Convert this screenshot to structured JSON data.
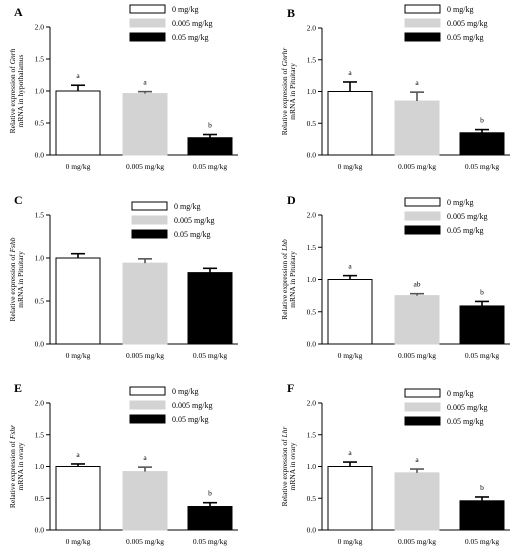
{
  "legend": [
    "0 mg/kg",
    "0.005 mg/kg",
    "0.05 mg/kg"
  ],
  "categories": [
    "0 mg/kg",
    "0.005 mg/kg",
    "0.05 mg/kg"
  ],
  "colors": {
    "fills": [
      "#ffffff",
      "#d3d3d3",
      "#000000"
    ],
    "strokes": [
      "#000000",
      "#d3d3d3",
      "#000000"
    ]
  },
  "chart_data": [
    {
      "type": "bar",
      "letter": "A",
      "gene": "Gnrh",
      "ylabel_prefix": "Relative expression of ",
      "ylabel_line2": "mRNA in hypothalamus",
      "ylim": [
        0,
        2
      ],
      "yticks": [
        "0.0",
        "0.5",
        "1.0",
        "1.5",
        "2.0"
      ],
      "categories": [
        "0 mg/kg",
        "0.005 mg/kg",
        "0.05 mg/kg"
      ],
      "values": [
        1.0,
        0.96,
        0.27
      ],
      "errors": [
        0.09,
        0.03,
        0.05
      ],
      "labels": [
        "a",
        "a",
        "b"
      ]
    },
    {
      "type": "bar",
      "letter": "B",
      "gene": "Gnrhr",
      "ylabel_prefix": "Relative expression of ",
      "ylabel_line2": "mRNA in Pituitary",
      "ylim": [
        0,
        2
      ],
      "yticks": [
        "0.0",
        "0.5",
        "1.0",
        "1.5",
        "2.0"
      ],
      "categories": [
        "0 mg/kg",
        "0.005 mg/kg",
        "0.05 mg/kg"
      ],
      "values": [
        1.0,
        0.85,
        0.35
      ],
      "errors": [
        0.15,
        0.14,
        0.05
      ],
      "labels": [
        "a",
        "a",
        "b"
      ]
    },
    {
      "type": "bar",
      "letter": "C",
      "gene": "Fshb",
      "ylabel_prefix": "Relative expression of ",
      "ylabel_line2": "mRNA in Pituitary",
      "ylim": [
        0,
        1.5
      ],
      "yticks": [
        "0.0",
        "0.5",
        "1.0",
        "1.5"
      ],
      "categories": [
        "0 mg/kg",
        "0.005 mg/kg",
        "0.05 mg/kg"
      ],
      "values": [
        1.0,
        0.94,
        0.83
      ],
      "errors": [
        0.05,
        0.05,
        0.05
      ],
      "labels": [
        "",
        "",
        ""
      ]
    },
    {
      "type": "bar",
      "letter": "D",
      "gene": "Lhb",
      "ylabel_prefix": "Relative expression of ",
      "ylabel_line2": "mRNA in Pituitary",
      "ylim": [
        0,
        2
      ],
      "yticks": [
        "0.0",
        "0.5",
        "1.0",
        "1.5",
        "2.0"
      ],
      "categories": [
        "0 mg/kg",
        "0.005 mg/kg",
        "0.05 mg/kg"
      ],
      "values": [
        1.0,
        0.75,
        0.59
      ],
      "errors": [
        0.06,
        0.03,
        0.07
      ],
      "labels": [
        "a",
        "ab",
        "b"
      ]
    },
    {
      "type": "bar",
      "letter": "E",
      "gene": "Fshr",
      "ylabel_prefix": "Relative expression of ",
      "ylabel_line2": "mRNA in ovary",
      "ylim": [
        0,
        2
      ],
      "yticks": [
        "0.0",
        "0.5",
        "1.0",
        "1.5",
        "2.0"
      ],
      "categories": [
        "0 mg/kg",
        "0.005 mg/kg",
        "0.05 mg/kg"
      ],
      "values": [
        1.0,
        0.92,
        0.37
      ],
      "errors": [
        0.04,
        0.07,
        0.06
      ],
      "labels": [
        "a",
        "a",
        "b"
      ]
    },
    {
      "type": "bar",
      "letter": "F",
      "gene": "Lhr",
      "ylabel_prefix": "Relative expression of ",
      "ylabel_line2": "mRNA in ovary",
      "ylim": [
        0,
        2
      ],
      "yticks": [
        "0.0",
        "0.5",
        "1.0",
        "1.5",
        "2.0"
      ],
      "categories": [
        "0 mg/kg",
        "0.005 mg/kg",
        "0.05 mg/kg"
      ],
      "values": [
        1.0,
        0.9,
        0.46
      ],
      "errors": [
        0.07,
        0.06,
        0.06
      ],
      "labels": [
        "a",
        "a",
        "b"
      ]
    }
  ]
}
